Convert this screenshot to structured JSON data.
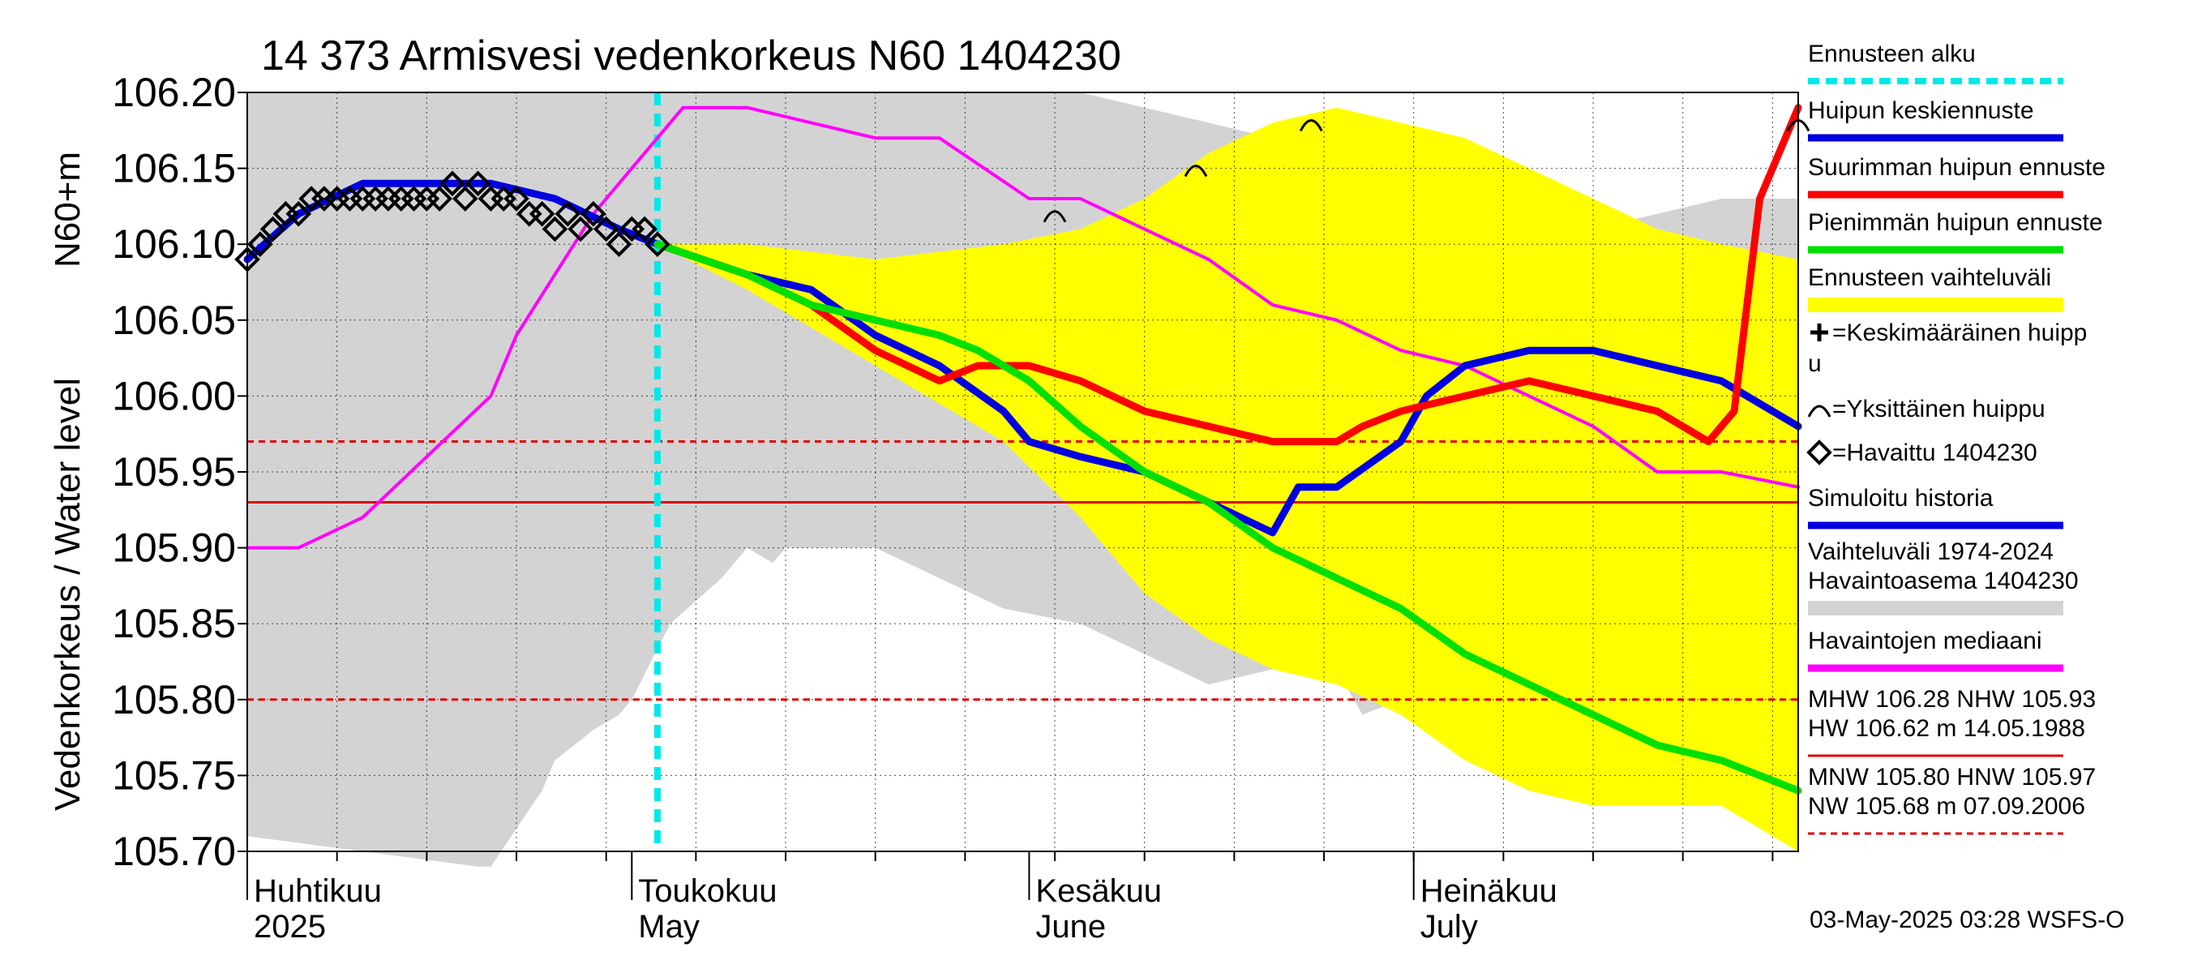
{
  "chart_data": {
    "type": "line",
    "title": "14 373 Armisvesi vedenkorkeus N60 1404230",
    "ylabel_left": "Vedenkorkeus / Water level",
    "ylabel_right": "N60+m",
    "ylim": [
      105.7,
      106.2
    ],
    "yticks": [
      "106.20",
      "106.15",
      "106.10",
      "106.05",
      "106.00",
      "105.95",
      "105.90",
      "105.85",
      "105.80",
      "105.75",
      "105.70"
    ],
    "xlim": [
      "2025-04-01",
      "2025-07-31"
    ],
    "x_months": [
      {
        "fi": "Huhtikuu",
        "en": "2025",
        "start": "2025-04-01"
      },
      {
        "fi": "Toukokuu",
        "en": "May",
        "start": "2025-05-01"
      },
      {
        "fi": "Kesäkuu",
        "en": "June",
        "start": "2025-06-01"
      },
      {
        "fi": "Heinäkuu",
        "en": "July",
        "start": "2025-07-01"
      }
    ],
    "forecast_start": "2025-05-03",
    "reference_lines": [
      {
        "value": 105.97,
        "style": "dashed",
        "color": "#e00000"
      },
      {
        "value": 105.93,
        "style": "solid",
        "color": "#e00000"
      },
      {
        "value": 105.8,
        "style": "dashed",
        "color": "#e00000"
      }
    ],
    "historical_range": {
      "x": [
        "2025-04-01",
        "2025-04-10",
        "2025-04-19",
        "2025-04-20",
        "2025-04-24",
        "2025-04-25",
        "2025-04-28",
        "2025-04-30",
        "2025-05-01",
        "2025-05-04",
        "2025-05-08",
        "2025-05-10",
        "2025-05-12",
        "2025-05-13",
        "2025-05-20",
        "2025-05-25",
        "2025-05-30",
        "2025-06-05",
        "2025-06-10",
        "2025-06-15",
        "2025-06-20",
        "2025-06-25",
        "2025-06-27",
        "2025-06-30",
        "2025-07-05",
        "2025-07-10",
        "2025-07-15",
        "2025-07-20",
        "2025-07-25",
        "2025-07-31"
      ],
      "upper": [
        106.2,
        106.2,
        106.2,
        106.2,
        106.2,
        106.2,
        106.2,
        106.2,
        106.2,
        106.2,
        106.2,
        106.2,
        106.2,
        106.2,
        106.2,
        106.2,
        106.2,
        106.2,
        106.19,
        106.18,
        106.17,
        106.16,
        106.15,
        106.15,
        106.12,
        106.11,
        106.11,
        106.12,
        106.13,
        106.13
      ],
      "lower": [
        105.71,
        105.7,
        105.69,
        105.69,
        105.74,
        105.76,
        105.78,
        105.79,
        105.8,
        105.85,
        105.88,
        105.9,
        105.89,
        105.9,
        105.9,
        105.88,
        105.86,
        105.85,
        105.83,
        105.81,
        105.82,
        105.82,
        105.79,
        105.8,
        105.79,
        105.79,
        105.78,
        105.75,
        105.74,
        105.71
      ]
    },
    "forecast_range": {
      "x": [
        "2025-05-03",
        "2025-05-10",
        "2025-05-20",
        "2025-05-30",
        "2025-06-05",
        "2025-06-10",
        "2025-06-15",
        "2025-06-20",
        "2025-06-25",
        "2025-06-30",
        "2025-07-05",
        "2025-07-10",
        "2025-07-15",
        "2025-07-20",
        "2025-07-25",
        "2025-07-31"
      ],
      "upper": [
        106.1,
        106.1,
        106.09,
        106.1,
        106.11,
        106.13,
        106.16,
        106.18,
        106.19,
        106.18,
        106.17,
        106.15,
        106.13,
        106.11,
        106.1,
        106.09
      ],
      "lower": [
        106.1,
        106.07,
        106.02,
        105.97,
        105.92,
        105.87,
        105.84,
        105.82,
        105.81,
        105.79,
        105.76,
        105.74,
        105.73,
        105.73,
        105.73,
        105.7
      ]
    },
    "series": [
      {
        "name": "Havaintojen mediaani",
        "color": "#ff00ff",
        "x": [
          "2025-04-01",
          "2025-04-05",
          "2025-04-10",
          "2025-04-15",
          "2025-04-20",
          "2025-04-22",
          "2025-04-25",
          "2025-04-28",
          "2025-05-01",
          "2025-05-05",
          "2025-05-10",
          "2025-05-15",
          "2025-05-20",
          "2025-05-25",
          "2025-06-01",
          "2025-06-05",
          "2025-06-10",
          "2025-06-15",
          "2025-06-20",
          "2025-06-25",
          "2025-06-30",
          "2025-07-05",
          "2025-07-10",
          "2025-07-15",
          "2025-07-20",
          "2025-07-25",
          "2025-07-31"
        ],
        "y": [
          105.9,
          105.9,
          105.92,
          105.96,
          106.0,
          106.04,
          106.08,
          106.12,
          106.15,
          106.19,
          106.19,
          106.18,
          106.17,
          106.17,
          106.13,
          106.13,
          106.11,
          106.09,
          106.06,
          106.05,
          106.03,
          106.02,
          106.0,
          105.98,
          105.95,
          105.95,
          105.94
        ]
      },
      {
        "name": "Simuloitu historia",
        "color": "#0000e0",
        "x": [
          "2025-04-01",
          "2025-04-05",
          "2025-04-10",
          "2025-04-15",
          "2025-04-20",
          "2025-04-25",
          "2025-04-30",
          "2025-05-03"
        ],
        "y": [
          106.09,
          106.12,
          106.14,
          106.14,
          106.14,
          106.13,
          106.11,
          106.1
        ]
      },
      {
        "name": "Huipun keskiennuste",
        "color": "#0000e0",
        "x": [
          "2025-05-03",
          "2025-05-10",
          "2025-05-15",
          "2025-05-20",
          "2025-05-25",
          "2025-05-30",
          "2025-06-01",
          "2025-06-05",
          "2025-06-10",
          "2025-06-15",
          "2025-06-20",
          "2025-06-22",
          "2025-06-25",
          "2025-06-30",
          "2025-07-02",
          "2025-07-05",
          "2025-07-10",
          "2025-07-15",
          "2025-07-20",
          "2025-07-25",
          "2025-07-31"
        ],
        "y": [
          106.1,
          106.08,
          106.07,
          106.04,
          106.02,
          105.99,
          105.97,
          105.96,
          105.95,
          105.93,
          105.91,
          105.94,
          105.94,
          105.97,
          106.0,
          106.02,
          106.03,
          106.03,
          106.02,
          106.01,
          105.98
        ]
      },
      {
        "name": "Suurimman huipun ennuste",
        "color": "#ff0000",
        "x": [
          "2025-05-03",
          "2025-05-10",
          "2025-05-15",
          "2025-05-20",
          "2025-05-25",
          "2025-05-28",
          "2025-06-01",
          "2025-06-05",
          "2025-06-10",
          "2025-06-15",
          "2025-06-20",
          "2025-06-25",
          "2025-06-27",
          "2025-06-30",
          "2025-07-05",
          "2025-07-10",
          "2025-07-15",
          "2025-07-20",
          "2025-07-24",
          "2025-07-26",
          "2025-07-28",
          "2025-07-31"
        ],
        "y": [
          106.1,
          106.08,
          106.06,
          106.03,
          106.01,
          106.02,
          106.02,
          106.01,
          105.99,
          105.98,
          105.97,
          105.97,
          105.98,
          105.99,
          106.0,
          106.01,
          106.0,
          105.99,
          105.97,
          105.99,
          106.13,
          106.19
        ]
      },
      {
        "name": "Pienimmän huipun ennuste",
        "color": "#00e000",
        "x": [
          "2025-05-03",
          "2025-05-10",
          "2025-05-15",
          "2025-05-20",
          "2025-05-25",
          "2025-05-28",
          "2025-06-01",
          "2025-06-05",
          "2025-06-10",
          "2025-06-15",
          "2025-06-20",
          "2025-06-25",
          "2025-06-30",
          "2025-07-05",
          "2025-07-10",
          "2025-07-15",
          "2025-07-20",
          "2025-07-25",
          "2025-07-31"
        ],
        "y": [
          106.1,
          106.08,
          106.06,
          106.05,
          106.04,
          106.03,
          106.01,
          105.98,
          105.95,
          105.93,
          105.9,
          105.88,
          105.86,
          105.83,
          105.81,
          105.79,
          105.77,
          105.76,
          105.74
        ]
      }
    ],
    "observed": {
      "name": "Havaittu 1404230",
      "x": [
        "2025-04-01",
        "2025-04-02",
        "2025-04-03",
        "2025-04-04",
        "2025-04-05",
        "2025-04-06",
        "2025-04-07",
        "2025-04-08",
        "2025-04-09",
        "2025-04-10",
        "2025-04-11",
        "2025-04-12",
        "2025-04-13",
        "2025-04-14",
        "2025-04-15",
        "2025-04-16",
        "2025-04-17",
        "2025-04-18",
        "2025-04-19",
        "2025-04-20",
        "2025-04-21",
        "2025-04-22",
        "2025-04-23",
        "2025-04-24",
        "2025-04-25",
        "2025-04-26",
        "2025-04-27",
        "2025-04-28",
        "2025-04-29",
        "2025-04-30",
        "2025-05-01",
        "2025-05-02",
        "2025-05-03"
      ],
      "y": [
        106.09,
        106.1,
        106.11,
        106.12,
        106.12,
        106.13,
        106.13,
        106.13,
        106.13,
        106.13,
        106.13,
        106.13,
        106.13,
        106.13,
        106.13,
        106.13,
        106.14,
        106.13,
        106.14,
        106.13,
        106.13,
        106.13,
        106.12,
        106.12,
        106.11,
        106.12,
        106.11,
        106.12,
        106.11,
        106.1,
        106.11,
        106.11,
        106.1
      ]
    },
    "individual_peaks": [
      {
        "x": "2025-06-03",
        "y": 106.12
      },
      {
        "x": "2025-06-14",
        "y": 106.15
      },
      {
        "x": "2025-06-23",
        "y": 106.18
      },
      {
        "x": "2025-07-31",
        "y": 106.18
      }
    ]
  },
  "legend": [
    {
      "label": "Ennusteen alku",
      "kind": "dashline",
      "color": "#00e8e8"
    },
    {
      "label": "Huipun keskiennuste",
      "kind": "line",
      "color": "#0000e0"
    },
    {
      "label": "Suurimman huipun ennuste",
      "kind": "line",
      "color": "#ff0000"
    },
    {
      "label": "Pienimmän huipun ennuste",
      "kind": "line",
      "color": "#00e000"
    },
    {
      "label": "Ennusteen vaihteluväli",
      "kind": "band",
      "color": "#ffff00"
    },
    {
      "label": "=Keskimääräinen huipp",
      "label2": "u",
      "kind": "plus"
    },
    {
      "label": "=Yksittäinen huippu",
      "kind": "arc"
    },
    {
      "label": "=Havaittu 1404230",
      "kind": "diamond"
    },
    {
      "label": "Simuloitu historia",
      "kind": "line",
      "color": "#0000e0"
    },
    {
      "label": "Vaihteluväli 1974-2024",
      "label2": " Havaintoasema 1404230",
      "kind": "band",
      "color": "#d3d3d3"
    },
    {
      "label": "Havaintojen mediaani",
      "kind": "line",
      "color": "#ff00ff"
    },
    {
      "label": "MHW 106.28 NHW 105.93",
      "label2": "HW 106.62 m 14.05.1988",
      "kind": "thinline",
      "color": "#e00000"
    },
    {
      "label": "MNW 105.80 HNW 105.97",
      "label2": "NW 105.68 m 07.09.2006",
      "kind": "dashthin",
      "color": "#e00000"
    }
  ],
  "footer": "03-May-2025 03:28 WSFS-O",
  "colors": {
    "historical_band": "#d3d3d3",
    "forecast_band": "#ffff00",
    "grid": "#000000"
  }
}
